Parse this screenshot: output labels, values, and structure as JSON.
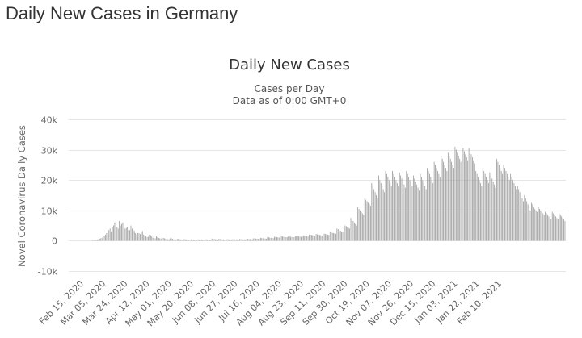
{
  "page": {
    "title": "Daily New Cases in Germany"
  },
  "chart_data": {
    "type": "bar",
    "title": "Daily New Cases",
    "subtitle_line1": "Cases per Day",
    "subtitle_line2": "Data as of 0:00 GMT+0",
    "ylabel": "Novel Coronavirus Daily Cases",
    "xlabel": "",
    "ylim": [
      -10000,
      40000
    ],
    "y_ticks": [
      -10000,
      0,
      10000,
      20000,
      30000,
      40000
    ],
    "y_tick_labels": [
      "-10k",
      "0",
      "10k",
      "20k",
      "30k",
      "40k"
    ],
    "x_tick_labels": [
      "Feb 15, 2020",
      "Mar 05, 2020",
      "Mar 24, 2020",
      "Apr 12, 2020",
      "May 01, 2020",
      "May 20, 2020",
      "Jun 08, 2020",
      "Jun 27, 2020",
      "Jul 16, 2020",
      "Aug 04, 2020",
      "Aug 23, 2020",
      "Sep 11, 2020",
      "Sep 30, 2020",
      "Oct 19, 2020",
      "Nov 07, 2020",
      "Nov 26, 2020",
      "Dec 15, 2020",
      "Jan 03, 2021",
      "Jan 22, 2021",
      "Feb 10, 2021"
    ],
    "x_tick_every_days": 19,
    "start_date": "Feb 15, 2020",
    "bar_color": "#999999",
    "grid": true,
    "series": [
      {
        "name": "Daily Cases",
        "values": [
          0,
          0,
          0,
          0,
          0,
          0,
          0,
          0,
          0,
          0,
          100,
          150,
          250,
          300,
          400,
          450,
          600,
          800,
          1000,
          1200,
          1500,
          2000,
          2500,
          3000,
          3500,
          4000,
          3000,
          4500,
          5000,
          6000,
          6500,
          4500,
          4000,
          6500,
          5000,
          5500,
          6000,
          4500,
          4000,
          4200,
          4500,
          3500,
          3500,
          5000,
          4000,
          3500,
          3200,
          2500,
          2000,
          2500,
          2500,
          2200,
          2800,
          3200,
          2000,
          1800,
          1500,
          1200,
          1300,
          2000,
          1800,
          1400,
          1000,
          900,
          800,
          1500,
          1200,
          900,
          800,
          700,
          650,
          900,
          800,
          600,
          500,
          500,
          450,
          800,
          750,
          600,
          450,
          400,
          350,
          600,
          550,
          500,
          400,
          350,
          300,
          500,
          450,
          400,
          350,
          300,
          280,
          450,
          420,
          380,
          330,
          300,
          280,
          420,
          400,
          380,
          350,
          330,
          300,
          500,
          450,
          400,
          380,
          350,
          320,
          700,
          650,
          550,
          480,
          420,
          380,
          600,
          550,
          500,
          450,
          400,
          380,
          500,
          480,
          450,
          420,
          400,
          380,
          500,
          480,
          450,
          420,
          400,
          380,
          550,
          520,
          480,
          450,
          420,
          400,
          600,
          580,
          550,
          500,
          480,
          450,
          800,
          750,
          700,
          650,
          600,
          550,
          900,
          850,
          800,
          750,
          700,
          650,
          1200,
          1100,
          1000,
          950,
          900,
          850,
          1300,
          1250,
          1200,
          1100,
          1050,
          1000,
          1500,
          1400,
          1300,
          1250,
          1200,
          1150,
          1400,
          1350,
          1300,
          1250,
          1200,
          1150,
          1600,
          1550,
          1500,
          1400,
          1350,
          1300,
          1800,
          1750,
          1700,
          1600,
          1500,
          1400,
          2000,
          1950,
          1900,
          1800,
          1700,
          1600,
          2200,
          2100,
          2000,
          1900,
          1800,
          1700,
          2400,
          2300,
          2200,
          2100,
          2000,
          1900,
          3000,
          2800,
          2600,
          2500,
          2400,
          2300,
          4000,
          3800,
          3500,
          3300,
          3000,
          2800,
          5500,
          5000,
          4800,
          4500,
          4200,
          4000,
          7500,
          7000,
          6500,
          6000,
          5500,
          5000,
          11000,
          10500,
          10000,
          9500,
          9000,
          8500,
          14000,
          13500,
          13000,
          12500,
          12000,
          11500,
          19000,
          18000,
          17000,
          16000,
          15000,
          14000,
          21500,
          20000,
          19000,
          18000,
          17000,
          16000,
          23000,
          22000,
          21000,
          20000,
          19000,
          18000,
          23000,
          22000,
          21000,
          20000,
          19000,
          18000,
          22500,
          21500,
          20500,
          19500,
          18500,
          17500,
          23000,
          22000,
          21000,
          20000,
          19000,
          18000,
          21500,
          20500,
          19500,
          18500,
          17500,
          16500,
          22000,
          21000,
          20000,
          19000,
          18000,
          17000,
          24000,
          23000,
          22000,
          21000,
          20000,
          19000,
          26000,
          25000,
          24000,
          23000,
          22000,
          21000,
          28000,
          27000,
          26000,
          25000,
          24000,
          23000,
          29000,
          28000,
          27000,
          26000,
          25000,
          24000,
          31000,
          30000,
          29000,
          28000,
          27000,
          26000,
          31500,
          30500,
          29500,
          28500,
          27500,
          26500,
          30500,
          29500,
          28500,
          27500,
          26500,
          25500,
          23000,
          22000,
          21000,
          20000,
          19000,
          18000,
          24000,
          23000,
          22000,
          21000,
          20000,
          19000,
          22500,
          21500,
          20500,
          19500,
          18500,
          17500,
          27000,
          26000,
          25000,
          24000,
          23000,
          22000,
          25000,
          24000,
          23000,
          22000,
          21000,
          20000,
          22000,
          21000,
          20000,
          19000,
          18000,
          17000,
          18000,
          17000,
          16000,
          15000,
          14000,
          13000,
          15000,
          14000,
          13000,
          12000,
          11000,
          10000,
          12500,
          12000,
          11000,
          10500,
          10000,
          9500,
          11000,
          10500,
          10000,
          9500,
          9000,
          8500,
          9500,
          9000,
          8500,
          8000,
          7500,
          7000,
          9500,
          9000,
          8500,
          8000,
          7500,
          7000,
          9000,
          8500,
          8000,
          7500,
          7000,
          6500
        ]
      }
    ]
  }
}
